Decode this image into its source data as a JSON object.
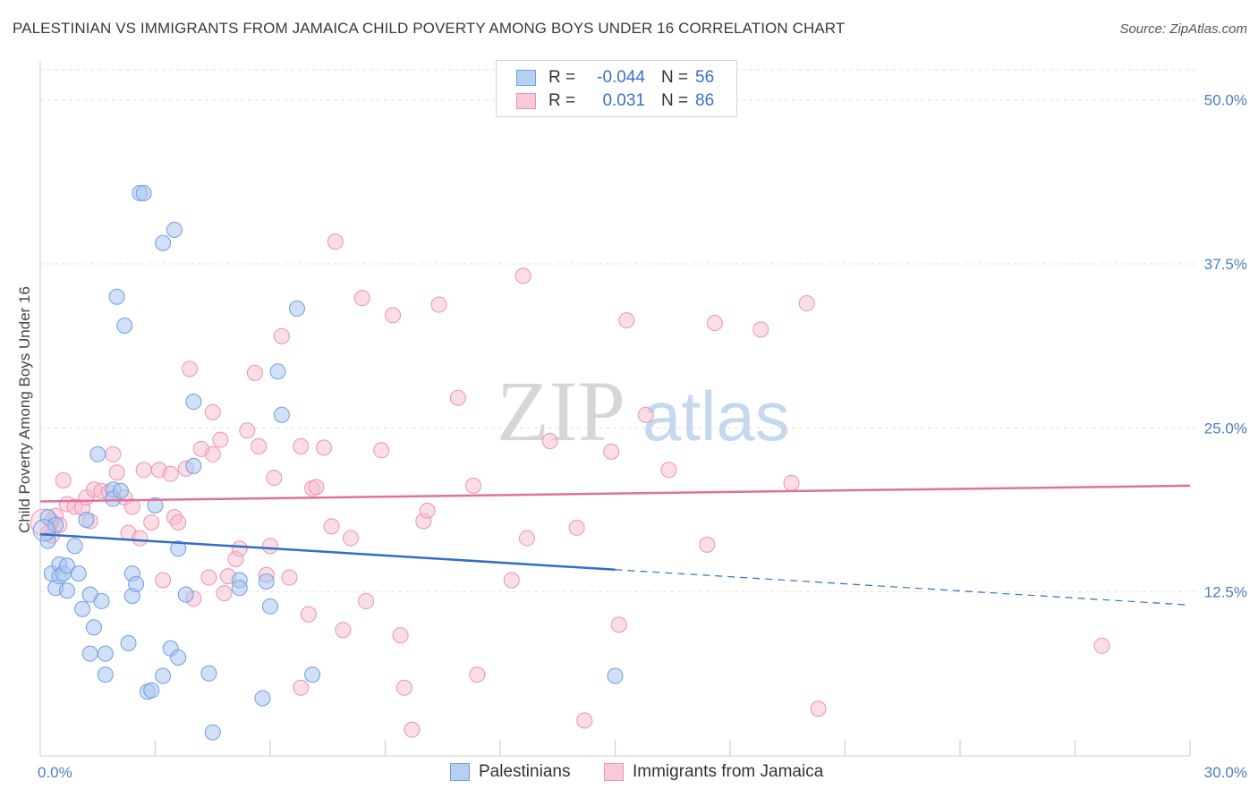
{
  "title": "PALESTINIAN VS IMMIGRANTS FROM JAMAICA CHILD POVERTY AMONG BOYS UNDER 16 CORRELATION CHART",
  "source": "Source: ZipAtlas.com",
  "watermark": {
    "zip": "ZIP",
    "atlas": "atlas"
  },
  "legend": {
    "r_label": "R =",
    "n_label": "N =",
    "rows": [
      {
        "r": "-0.044",
        "n": "56"
      },
      {
        "r": "0.031",
        "n": "86"
      }
    ]
  },
  "bottom_legend": [
    "Palestinians",
    "Immigrants from Jamaica"
  ],
  "colors": {
    "blue_fill": "#a9c7ef",
    "blue_stroke": "#6f9ee0",
    "blue_line": "#2f6fc9",
    "pink_fill": "#f7bcd0",
    "pink_stroke": "#ea92b0",
    "pink_line": "#e0719a",
    "axis_text": "#4a7cc9",
    "grid": "#e2e2e2"
  },
  "chart_data": {
    "type": "scatter",
    "title": "PALESTINIAN VS IMMIGRANTS FROM JAMAICA CHILD POVERTY AMONG BOYS UNDER 16 CORRELATION CHART",
    "xlabel": "",
    "ylabel": "Child Poverty Among Boys Under 16",
    "xlim": [
      0,
      30
    ],
    "ylim": [
      0,
      52.3
    ],
    "x_tick_labels": [
      "0.0%",
      "30.0%"
    ],
    "y_ticks": [
      12.5,
      25.0,
      37.5,
      50.0
    ],
    "y_tick_labels": [
      "12.5%",
      "25.0%",
      "37.5%",
      "50.0%"
    ],
    "series": [
      {
        "name": "Palestinians",
        "r": -0.044,
        "n": 56,
        "trend": {
          "x0": 0,
          "y0": 16.9,
          "x1": 15,
          "y1": 14.2,
          "dash_to_x": 30,
          "dash_y": 11.5
        },
        "points": [
          [
            0.2,
            18.2
          ],
          [
            0.2,
            16.4
          ],
          [
            0.3,
            13.9
          ],
          [
            0.4,
            12.8
          ],
          [
            0.4,
            17.6
          ],
          [
            0.5,
            14.6
          ],
          [
            0.5,
            13.7
          ],
          [
            0.6,
            13.9
          ],
          [
            0.7,
            12.6
          ],
          [
            0.7,
            14.5
          ],
          [
            0.9,
            16.0
          ],
          [
            1.0,
            13.9
          ],
          [
            1.1,
            11.2
          ],
          [
            1.2,
            18.0
          ],
          [
            1.3,
            7.8
          ],
          [
            1.3,
            12.3
          ],
          [
            1.4,
            9.8
          ],
          [
            1.5,
            23.0
          ],
          [
            1.6,
            11.8
          ],
          [
            1.7,
            7.8
          ],
          [
            1.7,
            6.2
          ],
          [
            1.9,
            20.3
          ],
          [
            1.9,
            19.6
          ],
          [
            2.0,
            35.0
          ],
          [
            2.1,
            20.2
          ],
          [
            2.2,
            32.8
          ],
          [
            2.3,
            8.6
          ],
          [
            2.4,
            12.2
          ],
          [
            2.4,
            13.9
          ],
          [
            2.5,
            13.1
          ],
          [
            2.6,
            42.9
          ],
          [
            2.7,
            42.9
          ],
          [
            2.8,
            4.9
          ],
          [
            2.9,
            5.0
          ],
          [
            3.0,
            19.1
          ],
          [
            3.2,
            39.1
          ],
          [
            3.2,
            6.1
          ],
          [
            3.4,
            8.2
          ],
          [
            3.5,
            40.1
          ],
          [
            3.6,
            15.8
          ],
          [
            3.6,
            7.5
          ],
          [
            3.8,
            12.3
          ],
          [
            4.0,
            27.0
          ],
          [
            4.0,
            22.1
          ],
          [
            4.4,
            6.3
          ],
          [
            4.5,
            1.8
          ],
          [
            5.2,
            13.4
          ],
          [
            5.2,
            12.8
          ],
          [
            5.8,
            4.4
          ],
          [
            5.9,
            13.3
          ],
          [
            6.0,
            11.4
          ],
          [
            6.2,
            29.3
          ],
          [
            6.3,
            26.0
          ],
          [
            6.7,
            34.1
          ],
          [
            7.1,
            6.2
          ],
          [
            15.0,
            6.1
          ]
        ]
      },
      {
        "name": "Immigrants from Jamaica",
        "r": 0.031,
        "n": 86,
        "trend": {
          "x0": 0,
          "y0": 19.4,
          "x1": 30,
          "y1": 20.6
        },
        "points": [
          [
            0.2,
            17.0
          ],
          [
            0.3,
            16.8
          ],
          [
            0.3,
            17.9
          ],
          [
            0.4,
            18.3
          ],
          [
            0.5,
            17.6
          ],
          [
            0.6,
            21.0
          ],
          [
            0.7,
            19.2
          ],
          [
            0.9,
            19.0
          ],
          [
            1.1,
            18.9
          ],
          [
            1.2,
            19.7
          ],
          [
            1.3,
            17.9
          ],
          [
            1.4,
            20.3
          ],
          [
            1.6,
            20.2
          ],
          [
            1.8,
            20.1
          ],
          [
            1.9,
            23.0
          ],
          [
            2.0,
            21.6
          ],
          [
            2.2,
            19.7
          ],
          [
            2.3,
            17.0
          ],
          [
            2.4,
            19.0
          ],
          [
            2.6,
            16.6
          ],
          [
            2.7,
            21.8
          ],
          [
            2.9,
            17.8
          ],
          [
            3.1,
            21.8
          ],
          [
            3.2,
            13.4
          ],
          [
            3.4,
            21.5
          ],
          [
            3.5,
            18.2
          ],
          [
            3.6,
            17.8
          ],
          [
            3.8,
            21.9
          ],
          [
            3.9,
            29.5
          ],
          [
            4.0,
            12.0
          ],
          [
            4.2,
            23.4
          ],
          [
            4.4,
            13.6
          ],
          [
            4.5,
            23.0
          ],
          [
            4.5,
            26.2
          ],
          [
            4.7,
            24.1
          ],
          [
            4.8,
            12.4
          ],
          [
            4.9,
            13.7
          ],
          [
            5.1,
            15.0
          ],
          [
            5.2,
            15.8
          ],
          [
            5.4,
            24.8
          ],
          [
            5.6,
            29.2
          ],
          [
            5.7,
            23.6
          ],
          [
            5.9,
            13.8
          ],
          [
            6.0,
            16.0
          ],
          [
            6.1,
            21.2
          ],
          [
            6.3,
            32.0
          ],
          [
            6.5,
            13.6
          ],
          [
            6.8,
            5.2
          ],
          [
            6.8,
            23.6
          ],
          [
            7.0,
            10.8
          ],
          [
            7.1,
            20.4
          ],
          [
            7.2,
            20.5
          ],
          [
            7.4,
            23.5
          ],
          [
            7.6,
            17.5
          ],
          [
            7.7,
            39.2
          ],
          [
            7.9,
            9.6
          ],
          [
            8.1,
            16.6
          ],
          [
            8.4,
            34.9
          ],
          [
            8.5,
            11.8
          ],
          [
            8.9,
            23.3
          ],
          [
            9.2,
            33.6
          ],
          [
            9.4,
            9.2
          ],
          [
            9.5,
            5.2
          ],
          [
            9.7,
            2.0
          ],
          [
            10.0,
            17.9
          ],
          [
            10.1,
            18.7
          ],
          [
            10.4,
            34.4
          ],
          [
            10.9,
            27.3
          ],
          [
            11.3,
            20.6
          ],
          [
            11.4,
            6.2
          ],
          [
            12.3,
            13.4
          ],
          [
            12.6,
            36.6
          ],
          [
            12.7,
            16.6
          ],
          [
            13.3,
            24.0
          ],
          [
            14.0,
            17.4
          ],
          [
            14.2,
            2.7
          ],
          [
            14.9,
            23.2
          ],
          [
            15.1,
            10.0
          ],
          [
            15.3,
            33.2
          ],
          [
            15.8,
            26.0
          ],
          [
            16.4,
            21.8
          ],
          [
            17.4,
            16.1
          ],
          [
            17.6,
            33.0
          ],
          [
            18.8,
            32.5
          ],
          [
            19.6,
            20.8
          ],
          [
            20.0,
            34.5
          ],
          [
            20.3,
            3.6
          ],
          [
            27.7,
            8.4
          ]
        ]
      }
    ]
  }
}
